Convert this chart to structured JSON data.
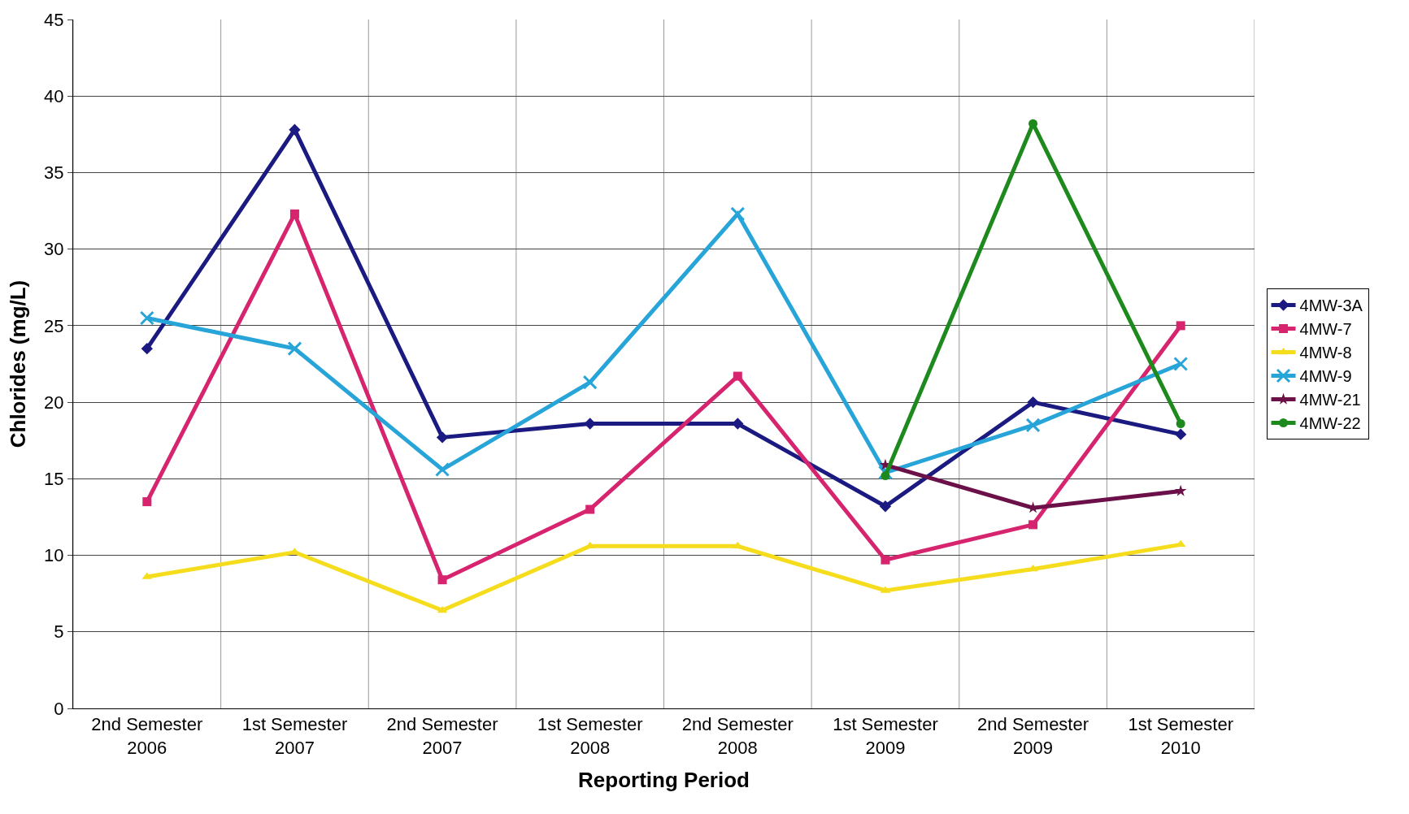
{
  "chart_data": {
    "type": "line",
    "xlabel": "Reporting Period",
    "ylabel": "Chlorides (mg/L)",
    "categories": [
      "2nd Semester\n2006",
      "1st Semester\n2007",
      "2nd Semester\n2007",
      "1st Semester\n2008",
      "2nd Semester\n2008",
      "1st Semester\n2009",
      "2nd Semester\n2009",
      "1st Semester\n2010"
    ],
    "series": [
      {
        "name": "4MW-3A",
        "color": "#1a1a80",
        "marker": "diamond",
        "values": [
          23.5,
          37.8,
          17.7,
          18.6,
          18.6,
          13.2,
          20.0,
          17.9
        ]
      },
      {
        "name": "4MW-7",
        "color": "#d6246e",
        "marker": "square",
        "values": [
          13.5,
          32.3,
          8.4,
          13.0,
          21.7,
          9.7,
          12.0,
          25.0
        ]
      },
      {
        "name": "4MW-8",
        "color": "#f5dd1e",
        "marker": "triangle",
        "values": [
          8.6,
          10.2,
          6.4,
          10.6,
          10.6,
          7.7,
          9.1,
          10.7
        ]
      },
      {
        "name": "4MW-9",
        "color": "#27a4d8",
        "marker": "cross",
        "values": [
          25.5,
          23.5,
          15.6,
          21.3,
          32.3,
          15.4,
          18.5,
          22.5
        ]
      },
      {
        "name": "4MW-21",
        "color": "#6b1048",
        "marker": "star",
        "values": [
          null,
          null,
          null,
          null,
          null,
          15.9,
          13.1,
          14.2
        ]
      },
      {
        "name": "4MW-22",
        "color": "#1e8a1e",
        "marker": "circle",
        "values": [
          null,
          null,
          null,
          null,
          null,
          15.2,
          38.2,
          18.6
        ]
      }
    ],
    "ylim": [
      0,
      45
    ],
    "yticks": [
      0,
      5,
      10,
      15,
      20,
      25,
      30,
      35,
      40,
      45
    ],
    "grid": true,
    "legend": "right",
    "line_style": "solid"
  }
}
